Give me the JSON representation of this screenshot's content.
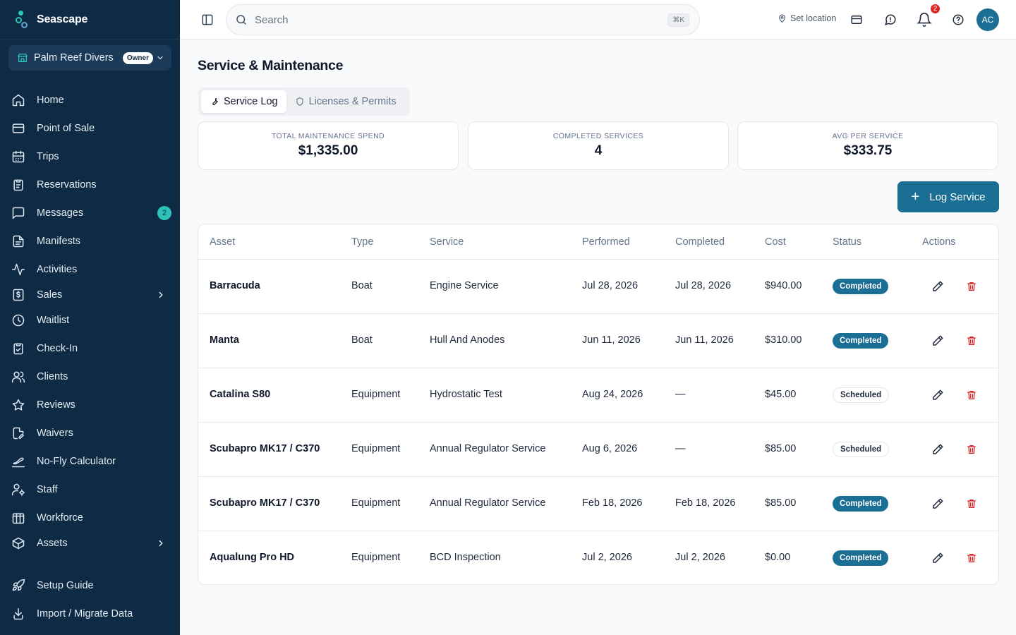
{
  "app": {
    "name": "Seascape"
  },
  "org": {
    "name": "Palm Reef Divers",
    "role": "Owner"
  },
  "nav": [
    {
      "label": "Home",
      "icon": "home-icon"
    },
    {
      "label": "Point of Sale",
      "icon": "credit-card-icon"
    },
    {
      "label": "Trips",
      "icon": "calendar-icon"
    },
    {
      "label": "Reservations",
      "icon": "clipboard-icon"
    },
    {
      "label": "Messages",
      "icon": "message-square-icon",
      "badge": "2"
    },
    {
      "label": "Manifests",
      "icon": "file-text-icon"
    },
    {
      "label": "Activities",
      "icon": "activity-icon"
    },
    {
      "label": "Sales",
      "icon": "receipt-icon",
      "expandable": true
    },
    {
      "label": "Waitlist",
      "icon": "clock-icon"
    },
    {
      "label": "Check-In",
      "icon": "clipboard-check-icon"
    },
    {
      "label": "Clients",
      "icon": "users-icon"
    },
    {
      "label": "Reviews",
      "icon": "star-icon"
    },
    {
      "label": "Waivers",
      "icon": "file-signature-icon"
    },
    {
      "label": "No-Fly Calculator",
      "icon": "plane-icon"
    },
    {
      "label": "Staff",
      "icon": "user-cog-icon"
    },
    {
      "label": "Workforce",
      "icon": "columns-icon"
    },
    {
      "label": "Assets",
      "icon": "box-icon",
      "expandable": true
    },
    {
      "label": "Setup Guide",
      "icon": "rocket-icon"
    },
    {
      "label": "Import / Migrate Data",
      "icon": "import-icon"
    }
  ],
  "topbar": {
    "search_placeholder": "Search",
    "search_shortcut": "⌘K",
    "set_location": "Set location",
    "notification_count": "2",
    "avatar_initials": "AC"
  },
  "page": {
    "title": "Service & Maintenance",
    "tabs": [
      {
        "label": "Service Log",
        "active": true,
        "icon": "wrench-icon"
      },
      {
        "label": "Licenses & Permits",
        "active": false,
        "icon": "shield-icon"
      }
    ],
    "stats": [
      {
        "label": "TOTAL MAINTENANCE SPEND",
        "value": "$1,335.00"
      },
      {
        "label": "COMPLETED SERVICES",
        "value": "4"
      },
      {
        "label": "AVG PER SERVICE",
        "value": "$333.75"
      }
    ],
    "log_button": "Log Service"
  },
  "table": {
    "columns": [
      "Asset",
      "Type",
      "Service",
      "Performed",
      "Completed",
      "Cost",
      "Status",
      "Actions"
    ],
    "rows": [
      {
        "asset": "Barracuda",
        "type": "Boat",
        "service": "Engine Service",
        "performed": "Jul 28, 2026",
        "completed": "Jul 28, 2026",
        "cost": "$940.00",
        "status": "Completed"
      },
      {
        "asset": "Manta",
        "type": "Boat",
        "service": "Hull And Anodes",
        "performed": "Jun 11, 2026",
        "completed": "Jun 11, 2026",
        "cost": "$310.00",
        "status": "Completed"
      },
      {
        "asset": "Catalina S80",
        "type": "Equipment",
        "service": "Hydrostatic Test",
        "performed": "Aug 24, 2026",
        "completed": "—",
        "cost": "$45.00",
        "status": "Scheduled"
      },
      {
        "asset": "Scubapro MK17 / C370",
        "type": "Equipment",
        "service": "Annual Regulator Service",
        "performed": "Aug 6, 2026",
        "completed": "—",
        "cost": "$85.00",
        "status": "Scheduled"
      },
      {
        "asset": "Scubapro MK17 / C370",
        "type": "Equipment",
        "service": "Annual Regulator Service",
        "performed": "Feb 18, 2026",
        "completed": "Feb 18, 2026",
        "cost": "$85.00",
        "status": "Completed"
      },
      {
        "asset": "Aqualung Pro HD",
        "type": "Equipment",
        "service": "BCD Inspection",
        "performed": "Jul 2, 2026",
        "completed": "Jul 2, 2026",
        "cost": "$0.00",
        "status": "Completed"
      }
    ]
  },
  "colors": {
    "sidebar": "#0f2a44",
    "accent": "#1b6f95",
    "teal": "#2cc2b8",
    "danger": "#dc2626"
  }
}
